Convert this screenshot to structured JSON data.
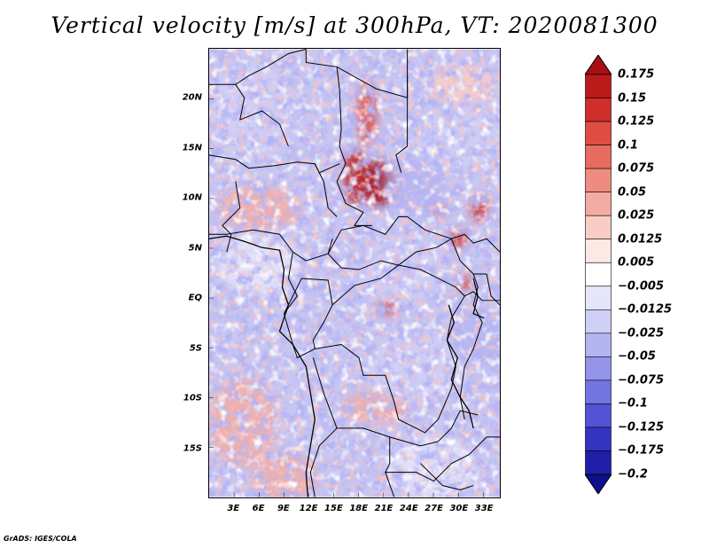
{
  "title": "Vertical velocity [m/s] at 300hPa, VT: 2020081300",
  "credit": "GrADS: IGES/COLA",
  "map": {
    "lat_range": [
      -20,
      25
    ],
    "lon_range": [
      0,
      35
    ],
    "lat_labels": [
      {
        "lat": 20,
        "text": "20N"
      },
      {
        "lat": 15,
        "text": "15N"
      },
      {
        "lat": 10,
        "text": "10N"
      },
      {
        "lat": 5,
        "text": "5N"
      },
      {
        "lat": 0,
        "text": "EQ"
      },
      {
        "lat": -5,
        "text": "5S"
      },
      {
        "lat": -10,
        "text": "10S"
      },
      {
        "lat": -15,
        "text": "15S"
      }
    ],
    "lon_labels": [
      {
        "lon": 3,
        "text": "3E"
      },
      {
        "lon": 6,
        "text": "6E"
      },
      {
        "lon": 9,
        "text": "9E"
      },
      {
        "lon": 12,
        "text": "12E"
      },
      {
        "lon": 15,
        "text": "15E"
      },
      {
        "lon": 18,
        "text": "18E"
      },
      {
        "lon": 21,
        "text": "21E"
      },
      {
        "lon": 24,
        "text": "24E"
      },
      {
        "lon": 27,
        "text": "27E"
      },
      {
        "lon": 30,
        "text": "30E"
      },
      {
        "lon": 33,
        "text": "33E"
      }
    ],
    "field_blobs": [
      {
        "lat": 11.5,
        "lon": 20.5,
        "rx": 2.2,
        "ry": 2.4,
        "value": 0.175
      },
      {
        "lat": 12.2,
        "lon": 17.6,
        "rx": 1.4,
        "ry": 2.8,
        "value": 0.15
      },
      {
        "lat": 18.5,
        "lon": 19.0,
        "rx": 1.2,
        "ry": 3.2,
        "value": 0.1
      },
      {
        "lat": 9.0,
        "lon": 27.5,
        "rx": 1.0,
        "ry": 0.7,
        "value": 0.1
      },
      {
        "lat": 9.0,
        "lon": 32.5,
        "rx": 1.0,
        "ry": 1.3,
        "value": 0.125
      },
      {
        "lat": 6.0,
        "lon": 30.0,
        "rx": 1.1,
        "ry": 0.9,
        "value": 0.125
      },
      {
        "lat": 1.5,
        "lon": 30.8,
        "rx": 0.8,
        "ry": 0.9,
        "value": 0.1
      },
      {
        "lat": -1.0,
        "lon": 21.5,
        "rx": 1.3,
        "ry": 0.7,
        "value": 0.1
      },
      {
        "lat": 9.0,
        "lon": 6.0,
        "rx": 5.0,
        "ry": 2.2,
        "value": 0.025
      },
      {
        "lat": -12.5,
        "lon": 4.0,
        "rx": 4.0,
        "ry": 4.5,
        "value": 0.025
      },
      {
        "lat": -18.0,
        "lon": 9.0,
        "rx": 4.0,
        "ry": 2.5,
        "value": 0.025
      },
      {
        "lat": -11.0,
        "lon": 20.0,
        "rx": 4.0,
        "ry": 1.6,
        "value": 0.025
      },
      {
        "lat": 21.5,
        "lon": 30.5,
        "rx": 4.0,
        "ry": 2.0,
        "value": 0.0125
      },
      {
        "lat": 11.0,
        "lon": 25.0,
        "rx": 3.5,
        "ry": 3.0,
        "value": -0.05
      },
      {
        "lat": 16.0,
        "lon": 30.0,
        "rx": 5.0,
        "ry": 3.0,
        "value": -0.025
      },
      {
        "lat": 3.0,
        "lon": 23.0,
        "rx": 5.0,
        "ry": 3.0,
        "value": -0.025
      },
      {
        "lat": 3.5,
        "lon": 6.0,
        "rx": 5.0,
        "ry": 3.0,
        "value": -0.0125
      },
      {
        "lat": -7.0,
        "lon": 25.0,
        "rx": 6.0,
        "ry": 3.5,
        "value": -0.025
      },
      {
        "lat": 19.0,
        "lon": 5.0,
        "rx": 5.0,
        "ry": 5.0,
        "value": -0.025
      },
      {
        "lat": -4.0,
        "lon": 32.0,
        "rx": 3.0,
        "ry": 3.0,
        "value": -0.05
      },
      {
        "lat": -17.0,
        "lon": 27.0,
        "rx": 5.0,
        "ry": 3.0,
        "value": -0.0125
      }
    ]
  },
  "colorbar": {
    "labels": [
      "0.175",
      "0.15",
      "0.125",
      "0.1",
      "0.075",
      "0.05",
      "0.025",
      "0.0125",
      "0.005",
      "−0.005",
      "−0.0125",
      "−0.025",
      "−0.05",
      "−0.075",
      "−0.1",
      "−0.125",
      "−0.175",
      "−0.2"
    ],
    "colors": [
      "#a50f15",
      "#bb1a1a",
      "#cf2e2b",
      "#de4c44",
      "#e76b60",
      "#ef8c80",
      "#f4aca2",
      "#f9cdc6",
      "#fce8e4",
      "#ffffff",
      "#e6e6fb",
      "#cfcff7",
      "#b4b4f1",
      "#9494e9",
      "#7474e0",
      "#5353d3",
      "#3434c0",
      "#1f1fa9",
      "#0f0f8c"
    ]
  },
  "colors": {
    "background_field": "#c6c6f2",
    "coastline": "#000000",
    "frame": "#000000"
  }
}
